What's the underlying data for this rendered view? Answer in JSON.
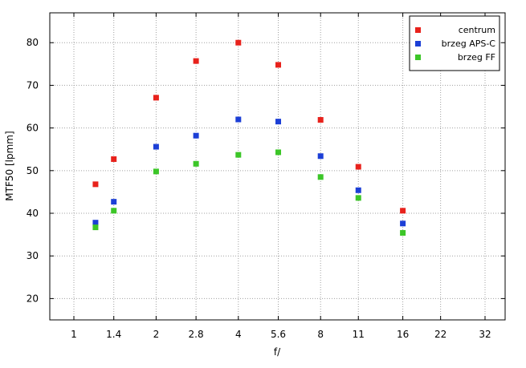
{
  "chart_data": {
    "type": "scatter",
    "xlabel": "f/",
    "ylabel": "MTF50 [lpmm]",
    "x_ticks": [
      "1",
      "1.4",
      "2",
      "2.8",
      "4",
      "5.6",
      "8",
      "11",
      "16",
      "22",
      "32"
    ],
    "y_ticks": [
      20,
      30,
      40,
      50,
      60,
      70,
      80
    ],
    "ylim": [
      15,
      87
    ],
    "grid": true,
    "legend_position": "top-right",
    "series": [
      {
        "name": "centrum",
        "color": "#e8221c",
        "points": [
          {
            "x": "1.2",
            "y": 46.8
          },
          {
            "x": "1.4",
            "y": 52.7
          },
          {
            "x": "2",
            "y": 67.1
          },
          {
            "x": "2.8",
            "y": 75.7
          },
          {
            "x": "4",
            "y": 80.0
          },
          {
            "x": "5.6",
            "y": 74.8
          },
          {
            "x": "8",
            "y": 61.9
          },
          {
            "x": "11",
            "y": 50.9
          },
          {
            "x": "16",
            "y": 40.6
          }
        ]
      },
      {
        "name": "brzeg APS-C",
        "color": "#1c3fd6",
        "points": [
          {
            "x": "1.2",
            "y": 37.8
          },
          {
            "x": "1.4",
            "y": 42.7
          },
          {
            "x": "2",
            "y": 55.6
          },
          {
            "x": "2.8",
            "y": 58.2
          },
          {
            "x": "4",
            "y": 62.0
          },
          {
            "x": "5.6",
            "y": 61.5
          },
          {
            "x": "8",
            "y": 53.4
          },
          {
            "x": "11",
            "y": 45.4
          },
          {
            "x": "16",
            "y": 37.6
          }
        ]
      },
      {
        "name": "brzeg FF",
        "color": "#3cc628",
        "points": [
          {
            "x": "1.2",
            "y": 36.7
          },
          {
            "x": "1.4",
            "y": 40.6
          },
          {
            "x": "2",
            "y": 49.8
          },
          {
            "x": "2.8",
            "y": 51.6
          },
          {
            "x": "4",
            "y": 53.7
          },
          {
            "x": "5.6",
            "y": 54.3
          },
          {
            "x": "8",
            "y": 48.5
          },
          {
            "x": "11",
            "y": 43.6
          },
          {
            "x": "16",
            "y": 35.4
          }
        ]
      }
    ]
  }
}
